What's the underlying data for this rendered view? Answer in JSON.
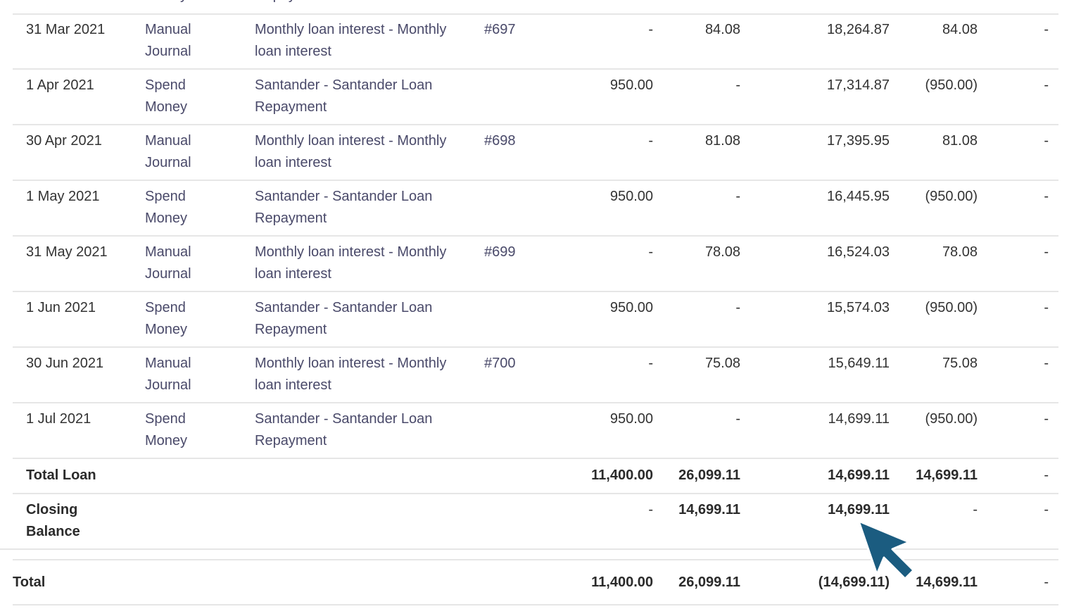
{
  "prev_row": {
    "source_tail": "Money",
    "desc_tail": "Repayment"
  },
  "rows": [
    {
      "date": "31 Mar 2021",
      "source": [
        "Manual",
        "Journal"
      ],
      "description": [
        "Monthly loan interest - Monthly",
        "loan interest"
      ],
      "reference": "#697",
      "debit": "-",
      "credit": "84.08",
      "running_balance": "18,264.87",
      "net_movement": "84.08",
      "gst": "-"
    },
    {
      "date": "1 Apr 2021",
      "source": [
        "Spend",
        "Money"
      ],
      "description": [
        "Santander - Santander Loan",
        "Repayment"
      ],
      "reference": "",
      "debit": "950.00",
      "credit": "-",
      "running_balance": "17,314.87",
      "net_movement": "(950.00)",
      "gst": "-"
    },
    {
      "date": "30 Apr 2021",
      "source": [
        "Manual",
        "Journal"
      ],
      "description": [
        "Monthly loan interest - Monthly",
        "loan interest"
      ],
      "reference": "#698",
      "debit": "-",
      "credit": "81.08",
      "running_balance": "17,395.95",
      "net_movement": "81.08",
      "gst": "-"
    },
    {
      "date": "1 May 2021",
      "source": [
        "Spend",
        "Money"
      ],
      "description": [
        "Santander - Santander Loan",
        "Repayment"
      ],
      "reference": "",
      "debit": "950.00",
      "credit": "-",
      "running_balance": "16,445.95",
      "net_movement": "(950.00)",
      "gst": "-"
    },
    {
      "date": "31 May 2021",
      "source": [
        "Manual",
        "Journal"
      ],
      "description": [
        "Monthly loan interest - Monthly",
        "loan interest"
      ],
      "reference": "#699",
      "debit": "-",
      "credit": "78.08",
      "running_balance": "16,524.03",
      "net_movement": "78.08",
      "gst": "-"
    },
    {
      "date": "1 Jun 2021",
      "source": [
        "Spend",
        "Money"
      ],
      "description": [
        "Santander - Santander Loan",
        "Repayment"
      ],
      "reference": "",
      "debit": "950.00",
      "credit": "-",
      "running_balance": "15,574.03",
      "net_movement": "(950.00)",
      "gst": "-"
    },
    {
      "date": "30 Jun 2021",
      "source": [
        "Manual",
        "Journal"
      ],
      "description": [
        "Monthly loan interest - Monthly",
        "loan interest"
      ],
      "reference": "#700",
      "debit": "-",
      "credit": "75.08",
      "running_balance": "15,649.11",
      "net_movement": "75.08",
      "gst": "-"
    },
    {
      "date": "1 Jul 2021",
      "source": [
        "Spend",
        "Money"
      ],
      "description": [
        "Santander - Santander Loan",
        "Repayment"
      ],
      "reference": "",
      "debit": "950.00",
      "credit": "-",
      "running_balance": "14,699.11",
      "net_movement": "(950.00)",
      "gst": "-"
    }
  ],
  "total_loan": {
    "label": "Total Loan",
    "debit": "11,400.00",
    "credit": "26,099.11",
    "running_balance": "14,699.11",
    "net_movement": "14,699.11",
    "gst": "-"
  },
  "closing_balance": {
    "label": [
      "Closing",
      "Balance"
    ],
    "debit": "-",
    "credit": "14,699.11",
    "running_balance": "14,699.11",
    "net_movement": "-",
    "gst": "-"
  },
  "grand_total": {
    "label": "Total",
    "debit": "11,400.00",
    "credit": "26,099.11",
    "running_balance": "(14,699.11)",
    "net_movement": "14,699.11",
    "gst": "-"
  },
  "colors": {
    "cursor": "#1b5c80",
    "divider": "#e6e6e6",
    "link_text": "#4a4a6a"
  },
  "icons": {
    "cursor": "mouse-pointer-arrow-icon"
  }
}
